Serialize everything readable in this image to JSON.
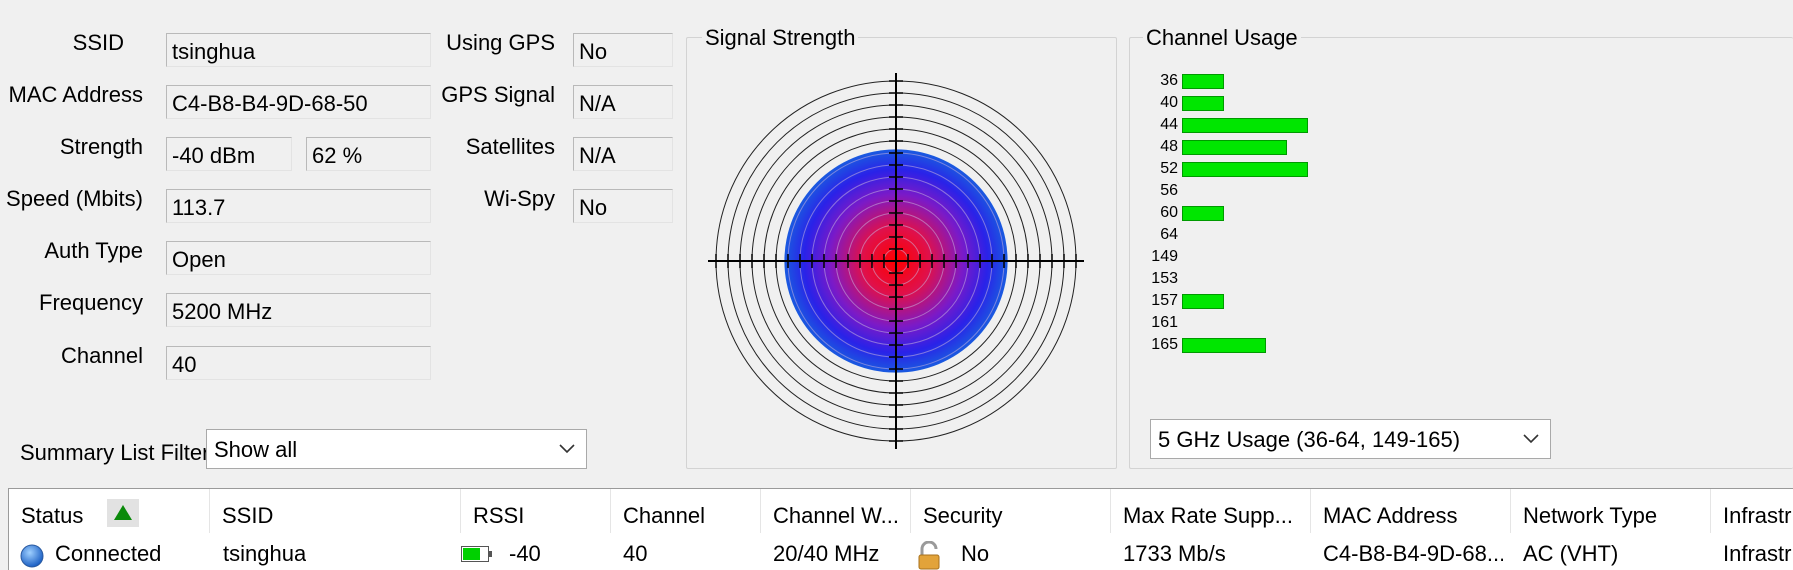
{
  "info": {
    "ssid_label": "SSID",
    "ssid_value": "tsinghua",
    "mac_label": "MAC Address",
    "mac_value": "C4-B8-B4-9D-68-50",
    "strength_label": "Strength",
    "strength_dbm": "-40 dBm",
    "strength_pct": "62 %",
    "speed_label": "Speed (Mbits)",
    "speed_value": "113.7",
    "auth_label": "Auth Type",
    "auth_value": "Open",
    "freq_label": "Frequency",
    "freq_value": "5200 MHz",
    "channel_label": "Channel",
    "channel_value": "40",
    "gps_label": "Using GPS",
    "gps_value": "No",
    "gps_signal_label": "GPS Signal",
    "gps_signal_value": "N/A",
    "satellites_label": "Satellites",
    "satellites_value": "N/A",
    "wispy_label": "Wi-Spy",
    "wispy_value": "No"
  },
  "filter": {
    "label": "Summary List Filter:",
    "value": "Show all"
  },
  "signal": {
    "title": "Signal Strength",
    "strength_percent": 62
  },
  "usage": {
    "title": "Channel Usage",
    "dropdown_value": "5 GHz Usage (36-64, 149-165)",
    "channels": [
      {
        "ch": "36",
        "level": 1
      },
      {
        "ch": "40",
        "level": 1
      },
      {
        "ch": "44",
        "level": 3
      },
      {
        "ch": "48",
        "level": 2.5
      },
      {
        "ch": "52",
        "level": 3
      },
      {
        "ch": "56",
        "level": 0
      },
      {
        "ch": "60",
        "level": 1
      },
      {
        "ch": "64",
        "level": 0
      },
      {
        "ch": "149",
        "level": 0
      },
      {
        "ch": "153",
        "level": 0
      },
      {
        "ch": "157",
        "level": 1
      },
      {
        "ch": "161",
        "level": 0
      },
      {
        "ch": "165",
        "level": 2
      }
    ],
    "bar_color": "#00e600"
  },
  "table": {
    "columns": [
      "Status",
      "SSID",
      "RSSI",
      "Channel",
      "Channel W...",
      "Security",
      "Max Rate Supp...",
      "MAC Address",
      "Network Type",
      "Infrastr"
    ],
    "sort_column": "Status",
    "rows": [
      {
        "status": "Connected",
        "ssid": "tsinghua",
        "rssi": "-40",
        "channel": "40",
        "channel_width": "20/40 MHz",
        "security": "No",
        "max_rate": "1733 Mb/s",
        "mac": "C4-B8-B4-9D-68...",
        "network_type": "AC (VHT)",
        "infra": "Infrastr"
      }
    ]
  }
}
